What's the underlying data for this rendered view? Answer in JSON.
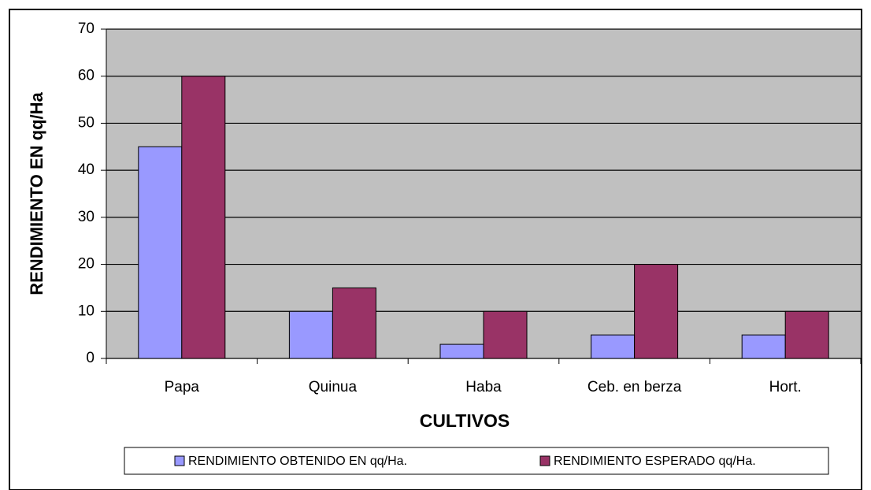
{
  "chart_data": {
    "type": "bar",
    "y_axis_label": "RENDIMIENTO EN qq/Ha",
    "x_axis_label": "CULTIVOS",
    "categories": [
      "Papa",
      "Quinua",
      "Haba",
      "Ceb. en berza",
      "Hort."
    ],
    "series": [
      {
        "name": "RENDIMIENTO OBTENIDO EN qq/Ha.",
        "color": "#9999ff",
        "values": [
          45,
          10,
          3,
          5,
          5
        ]
      },
      {
        "name": "RENDIMIENTO ESPERADO qq/Ha.",
        "color": "#993366",
        "values": [
          60,
          15,
          10,
          20,
          10
        ]
      }
    ],
    "ylim": [
      0,
      70
    ],
    "yticks": [
      0,
      10,
      20,
      30,
      40,
      50,
      60,
      70
    ],
    "grid": true,
    "legend": "bottom"
  }
}
